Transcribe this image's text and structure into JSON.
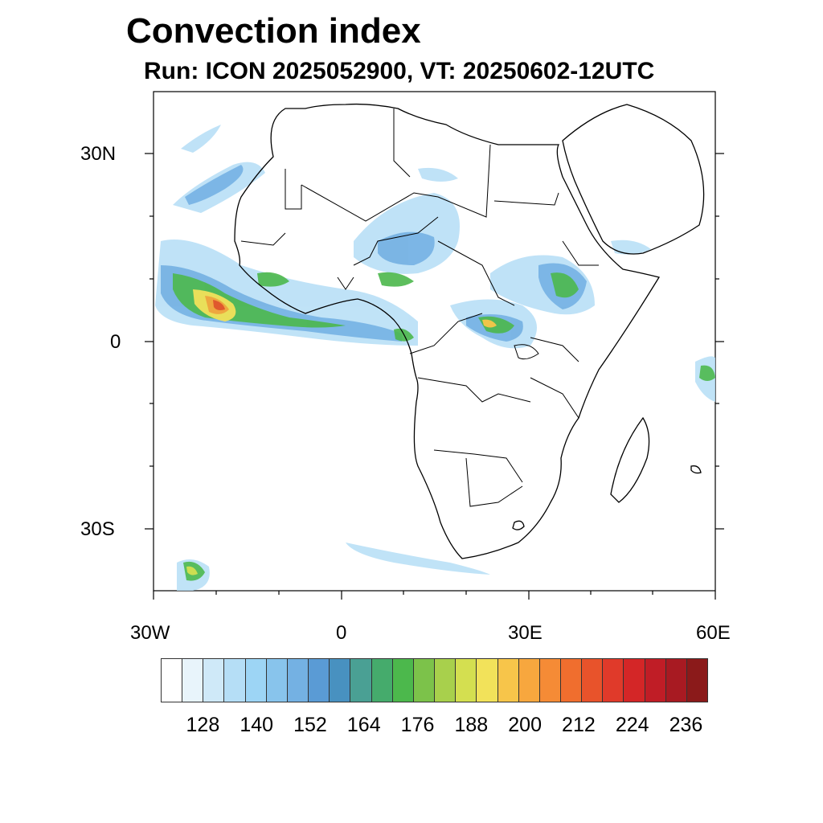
{
  "header": {
    "title": "Convection index",
    "subtitle": "Run: ICON 2025052900,  VT: 20250602-12UTC"
  },
  "axes": {
    "lat_labels": [
      "30N",
      "0",
      "30S"
    ],
    "lon_labels": [
      "30W",
      "0",
      "30E",
      "60E"
    ]
  },
  "legend": {
    "colors": [
      "#ffffff",
      "#e8f4fb",
      "#cfe9f8",
      "#b5def6",
      "#9dd5f5",
      "#88c4ec",
      "#74b1e3",
      "#5a9bd5",
      "#4891c0",
      "#4aa094",
      "#45ab6c",
      "#4cb84c",
      "#7cc24a",
      "#a8d04c",
      "#d4df50",
      "#f2e25a",
      "#f7c54a",
      "#f7a73e",
      "#f58b36",
      "#f06e2e",
      "#e8532b",
      "#e03a2a",
      "#d42627",
      "#c01d26",
      "#a81a22",
      "#8b1a1a"
    ],
    "labels": [
      "128",
      "140",
      "152",
      "164",
      "176",
      "188",
      "200",
      "212",
      "224",
      "236"
    ]
  }
}
